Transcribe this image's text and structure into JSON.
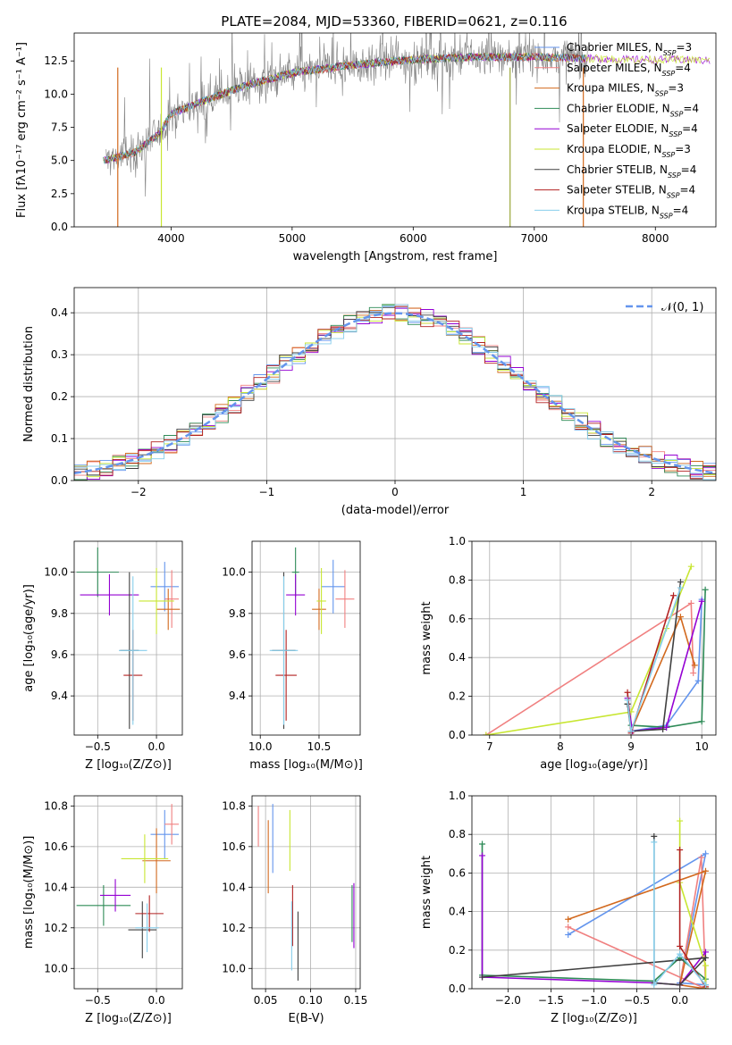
{
  "title": "PLATE=2084, MJD=53360, FIBERID=0621, z=0.116",
  "chart_data": [
    {
      "id": "spectrum",
      "type": "line",
      "xlabel": "wavelength [Angstrom, rest frame]",
      "ylabel": "Flux [fλ10⁻¹⁷ erg cm⁻² s⁻¹ A⁻¹]",
      "xlim": [
        3200,
        8500
      ],
      "ylim": [
        0,
        14.6
      ],
      "xticks": [
        4000,
        5000,
        6000,
        7000,
        8000
      ],
      "yticks": [
        0.0,
        2.5,
        5.0,
        7.5,
        10.0,
        12.5
      ],
      "grid": false,
      "legend_position": "upper-right",
      "data_color": "#808080",
      "series": [
        {
          "name": "Chabrier MILES, N",
          "sub": "SSP",
          "tail": "=3",
          "color": "#6495ed"
        },
        {
          "name": "Salpeter MILES, N",
          "sub": "SSP",
          "tail": "=4",
          "color": "#f08080"
        },
        {
          "name": "Kroupa MILES, N",
          "sub": "SSP",
          "tail": "=3",
          "color": "#d2691e"
        },
        {
          "name": "Chabrier ELODIE, N",
          "sub": "SSP",
          "tail": "=4",
          "color": "#2e8b57"
        },
        {
          "name": "Salpeter ELODIE, N",
          "sub": "SSP",
          "tail": "=4",
          "color": "#9400d3"
        },
        {
          "name": "Kroupa ELODIE, N",
          "sub": "SSP",
          "tail": "=3",
          "color": "#c8e632"
        },
        {
          "name": "Chabrier STELIB, N",
          "sub": "SSP",
          "tail": "=4",
          "color": "#404040"
        },
        {
          "name": "Salpeter STELIB, N",
          "sub": "SSP",
          "tail": "=4",
          "color": "#b22222"
        },
        {
          "name": "Kroupa STELIB, N",
          "sub": "SSP",
          "tail": "=4",
          "color": "#87ceeb"
        }
      ],
      "continuum": {
        "x": [
          3450,
          3700,
          3900,
          4000,
          4300,
          4600,
          5000,
          5500,
          6000,
          6500,
          7000,
          7400,
          7800,
          8200,
          8500
        ],
        "y": [
          5.0,
          5.6,
          7.0,
          8.5,
          9.6,
          10.6,
          11.6,
          12.2,
          12.6,
          12.8,
          12.8,
          12.7,
          12.6,
          12.6,
          12.5
        ]
      }
    },
    {
      "id": "residuals",
      "type": "histogram",
      "xlabel": "(data-model)/error",
      "ylabel": "Normed distribution",
      "xlim": [
        -2.5,
        2.5
      ],
      "ylim": [
        0,
        0.46
      ],
      "xticks": [
        -2,
        -1,
        0,
        1,
        2
      ],
      "yticks": [
        0.0,
        0.1,
        0.2,
        0.3,
        0.4
      ],
      "grid": true,
      "legend_position": "upper-right",
      "legend": "𝒩(0, 1)",
      "gaussian_color": "#6495ed",
      "bin_width": 0.1
    },
    {
      "id": "age-vs-Z",
      "type": "errorbar",
      "xlabel": "Z [log₁₀(Z/Z⊙)]",
      "ylabel": "age  [log₁₀(age/yr)]",
      "xlim": [
        -0.7,
        0.22
      ],
      "ylim": [
        9.21,
        10.15
      ],
      "xticks": [
        -0.5,
        0.0
      ],
      "yticks": [
        9.4,
        9.6,
        9.8,
        10.0
      ],
      "grid": true,
      "points": [
        {
          "x": 0.07,
          "xerr": 0.12,
          "y": 9.93,
          "yerr": 0.12,
          "color": "#6495ed"
        },
        {
          "x": 0.13,
          "xerr": 0.06,
          "y": 9.87,
          "yerr": 0.14,
          "color": "#f08080"
        },
        {
          "x": 0.1,
          "xerr": 0.1,
          "y": 9.82,
          "yerr": 0.1,
          "color": "#d2691e"
        },
        {
          "x": -0.5,
          "xerr": 0.18,
          "y": 10.0,
          "yerr": 0.12,
          "color": "#2e8b57"
        },
        {
          "x": -0.4,
          "xerr": 0.25,
          "y": 9.89,
          "yerr": 0.1,
          "color": "#9400d3"
        },
        {
          "x": 0.0,
          "xerr": 0.15,
          "y": 9.86,
          "yerr": 0.16,
          "color": "#c8e632"
        },
        {
          "x": -0.23,
          "xerr": 0.08,
          "y": 9.62,
          "yerr": 0.38,
          "color": "#404040"
        },
        {
          "x": -0.2,
          "xerr": 0.08,
          "y": 9.5,
          "yerr": 0.22,
          "color": "#b22222"
        },
        {
          "x": -0.2,
          "xerr": 0.12,
          "y": 9.62,
          "yerr": 0.36,
          "color": "#87ceeb"
        }
      ]
    },
    {
      "id": "age-vs-mass",
      "type": "errorbar",
      "xlabel": "mass [log₁₀(M/M⊙)]",
      "ylabel": "",
      "xlim": [
        9.93,
        10.85
      ],
      "ylim": [
        9.21,
        10.15
      ],
      "xticks": [
        10.0,
        10.5
      ],
      "yticks": [
        9.4,
        9.6,
        9.8,
        10.0
      ],
      "grid": true,
      "points": [
        {
          "x": 10.62,
          "xerr": 0.1,
          "y": 9.93,
          "yerr": 0.13,
          "color": "#6495ed"
        },
        {
          "x": 10.72,
          "xerr": 0.08,
          "y": 9.87,
          "yerr": 0.14,
          "color": "#f08080"
        },
        {
          "x": 10.5,
          "xerr": 0.06,
          "y": 9.82,
          "yerr": 0.1,
          "color": "#d2691e"
        },
        {
          "x": 10.3,
          "xerr": 0.03,
          "y": 10.0,
          "yerr": 0.12,
          "color": "#2e8b57"
        },
        {
          "x": 10.3,
          "xerr": 0.08,
          "y": 9.89,
          "yerr": 0.1,
          "color": "#9400d3"
        },
        {
          "x": 10.52,
          "xerr": 0.04,
          "y": 9.86,
          "yerr": 0.16,
          "color": "#c8e632"
        },
        {
          "x": 10.2,
          "xerr": 0.1,
          "y": 9.62,
          "yerr": 0.38,
          "color": "#404040"
        },
        {
          "x": 10.22,
          "xerr": 0.09,
          "y": 9.5,
          "yerr": 0.22,
          "color": "#b22222"
        },
        {
          "x": 10.2,
          "xerr": 0.12,
          "y": 9.62,
          "yerr": 0.36,
          "color": "#87ceeb"
        }
      ]
    },
    {
      "id": "mass-weight-vs-age",
      "type": "line",
      "xlabel": "age  [log₁₀(age/yr)]",
      "ylabel": "mass weight",
      "xlim": [
        6.75,
        10.2
      ],
      "ylim": [
        0,
        1
      ],
      "xticks": [
        7,
        8,
        9,
        10
      ],
      "yticks": [
        0.0,
        0.2,
        0.4,
        0.6,
        0.8,
        1.0
      ],
      "grid": true,
      "series": [
        {
          "color": "#6495ed",
          "x": [
            9.0,
            9.5,
            9.95,
            10.0
          ],
          "y": [
            0.02,
            0.05,
            0.28,
            0.7
          ]
        },
        {
          "color": "#f08080",
          "x": [
            6.95,
            9.85,
            9.88
          ],
          "y": [
            0.0,
            0.68,
            0.32
          ]
        },
        {
          "color": "#d2691e",
          "x": [
            9.0,
            9.7,
            9.9
          ],
          "y": [
            0.02,
            0.61,
            0.36
          ]
        },
        {
          "color": "#2e8b57",
          "x": [
            8.95,
            9.0,
            9.5,
            10.0,
            10.05
          ],
          "y": [
            0.16,
            0.05,
            0.04,
            0.07,
            0.75
          ]
        },
        {
          "color": "#9400d3",
          "x": [
            8.95,
            9.02,
            9.5,
            10.0
          ],
          "y": [
            0.19,
            0.02,
            0.04,
            0.69
          ]
        },
        {
          "color": "#c8e632",
          "x": [
            6.95,
            9.0,
            9.5,
            9.85
          ],
          "y": [
            0.0,
            0.12,
            0.55,
            0.87
          ]
        },
        {
          "color": "#404040",
          "x": [
            8.95,
            9.0,
            9.45,
            9.7
          ],
          "y": [
            0.16,
            0.02,
            0.03,
            0.79
          ]
        },
        {
          "color": "#b22222",
          "x": [
            8.95,
            9.0,
            9.6
          ],
          "y": [
            0.22,
            0.01,
            0.72
          ]
        },
        {
          "color": "#87ceeb",
          "x": [
            8.95,
            9.0,
            9.7
          ],
          "y": [
            0.18,
            0.02,
            0.76
          ]
        }
      ]
    },
    {
      "id": "mass-vs-Z",
      "type": "errorbar",
      "xlabel": "Z [log₁₀(Z/Z⊙)]",
      "ylabel": "mass [log₁₀(M/M⊙)]",
      "xlim": [
        -0.7,
        0.22
      ],
      "ylim": [
        9.9,
        10.85
      ],
      "xticks": [
        -0.5,
        0.0
      ],
      "yticks": [
        10.0,
        10.2,
        10.4,
        10.6,
        10.8
      ],
      "grid": true,
      "points": [
        {
          "x": 0.07,
          "xerr": 0.12,
          "y": 10.66,
          "yerr": 0.12,
          "color": "#6495ed"
        },
        {
          "x": 0.13,
          "xerr": 0.06,
          "y": 10.71,
          "yerr": 0.1,
          "color": "#f08080"
        },
        {
          "x": 0.0,
          "xerr": 0.12,
          "y": 10.53,
          "yerr": 0.16,
          "color": "#d2691e"
        },
        {
          "x": -0.45,
          "xerr": 0.23,
          "y": 10.31,
          "yerr": 0.1,
          "color": "#2e8b57"
        },
        {
          "x": -0.35,
          "xerr": 0.13,
          "y": 10.36,
          "yerr": 0.08,
          "color": "#9400d3"
        },
        {
          "x": -0.1,
          "xerr": 0.2,
          "y": 10.54,
          "yerr": 0.12,
          "color": "#c8e632"
        },
        {
          "x": -0.12,
          "xerr": 0.12,
          "y": 10.19,
          "yerr": 0.14,
          "color": "#404040"
        },
        {
          "x": -0.06,
          "xerr": 0.12,
          "y": 10.27,
          "yerr": 0.09,
          "color": "#b22222"
        },
        {
          "x": -0.08,
          "xerr": 0.1,
          "y": 10.2,
          "yerr": 0.12,
          "color": "#87ceeb"
        }
      ]
    },
    {
      "id": "mass-vs-EBV",
      "type": "errorbar",
      "xlabel": "E(B-V)",
      "ylabel": "",
      "xlim": [
        0.035,
        0.155
      ],
      "ylim": [
        9.9,
        10.85
      ],
      "xticks": [
        0.05,
        0.1,
        0.15
      ],
      "yticks": [
        10.0,
        10.2,
        10.4,
        10.6,
        10.8
      ],
      "grid": true,
      "points": [
        {
          "x": 0.058,
          "xerr": 0.0,
          "y": 10.64,
          "yerr": 0.17,
          "color": "#6495ed"
        },
        {
          "x": 0.042,
          "xerr": 0.0,
          "y": 10.7,
          "yerr": 0.1,
          "color": "#f08080"
        },
        {
          "x": 0.053,
          "xerr": 0.0,
          "y": 10.55,
          "yerr": 0.18,
          "color": "#d2691e"
        },
        {
          "x": 0.146,
          "xerr": 0.0,
          "y": 10.27,
          "yerr": 0.14,
          "color": "#2e8b57"
        },
        {
          "x": 0.148,
          "xerr": 0.0,
          "y": 10.26,
          "yerr": 0.16,
          "color": "#9400d3"
        },
        {
          "x": 0.077,
          "xerr": 0.0,
          "y": 10.63,
          "yerr": 0.15,
          "color": "#c8e632"
        },
        {
          "x": 0.086,
          "xerr": 0.0,
          "y": 10.11,
          "yerr": 0.17,
          "color": "#404040"
        },
        {
          "x": 0.08,
          "xerr": 0.0,
          "y": 10.26,
          "yerr": 0.15,
          "color": "#b22222"
        },
        {
          "x": 0.079,
          "xerr": 0.0,
          "y": 10.16,
          "yerr": 0.17,
          "color": "#87ceeb"
        }
      ]
    },
    {
      "id": "mass-weight-vs-Z",
      "type": "line",
      "xlabel": "Z [log₁₀(Z/Z⊙)]",
      "ylabel": "mass weight",
      "xlim": [
        -2.42,
        0.42
      ],
      "ylim": [
        0,
        1
      ],
      "xticks": [
        -2.0,
        -1.5,
        -1.0,
        -0.5,
        0.0
      ],
      "yticks": [
        0.0,
        0.2,
        0.4,
        0.6,
        0.8,
        1.0
      ],
      "grid": true,
      "series": [
        {
          "color": "#6495ed",
          "x": [
            -1.3,
            0.3,
            0.0,
            0.3
          ],
          "y": [
            0.28,
            0.7,
            0.03,
            0.02
          ]
        },
        {
          "color": "#f08080",
          "x": [
            -1.3,
            0.3,
            0.25,
            0.0
          ],
          "y": [
            0.32,
            0.0,
            0.68,
            0.02
          ]
        },
        {
          "color": "#d2691e",
          "x": [
            -1.3,
            0.3,
            0.0,
            0.3
          ],
          "y": [
            0.36,
            0.61,
            0.02,
            0.0
          ]
        },
        {
          "color": "#2e8b57",
          "x": [
            -2.3,
            -2.3,
            -0.3,
            0.0,
            0.3,
            0.3
          ],
          "y": [
            0.75,
            0.07,
            0.04,
            0.16,
            0.05,
            0.0
          ]
        },
        {
          "color": "#9400d3",
          "x": [
            -2.3,
            -2.3,
            -0.3,
            0.0,
            0.3
          ],
          "y": [
            0.69,
            0.06,
            0.03,
            0.02,
            0.19
          ]
        },
        {
          "color": "#c8e632",
          "x": [
            0.0,
            0.0,
            0.3,
            0.3
          ],
          "y": [
            0.87,
            0.55,
            0.12,
            0.0
          ]
        },
        {
          "color": "#404040",
          "x": [
            -0.3,
            -0.3,
            0.0,
            0.3,
            -2.3
          ],
          "y": [
            0.79,
            0.03,
            0.02,
            0.16,
            0.06
          ]
        },
        {
          "color": "#b22222",
          "x": [
            0.0,
            0.0,
            0.3
          ],
          "y": [
            0.72,
            0.22,
            0.01
          ]
        },
        {
          "color": "#87ceeb",
          "x": [
            -0.3,
            -0.3,
            0.0,
            0.3
          ],
          "y": [
            0.76,
            0.02,
            0.18,
            0.02
          ]
        }
      ]
    }
  ]
}
